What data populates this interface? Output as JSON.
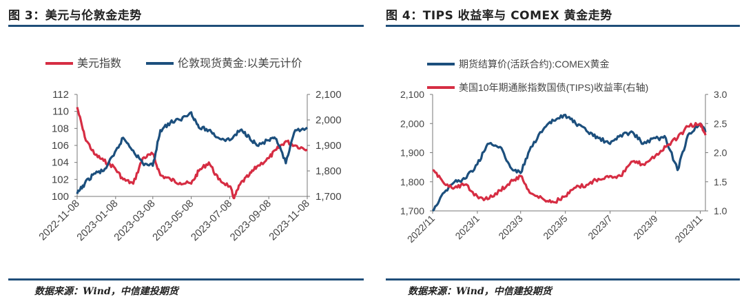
{
  "panels": [
    {
      "title": "图 3：美元与伦敦金走势",
      "source": "数据来源：Wind，中信建投期货"
    },
    {
      "title": "图 4：TIPS 收益率与 COMEX 黄金走势",
      "source": "数据来源：Wind，中信建投期货"
    }
  ],
  "colors": {
    "red": "#d62d43",
    "navy": "#1c4f7d",
    "rule": "#1f4e79"
  },
  "chart_data": [
    {
      "type": "line",
      "legend_placement": "top",
      "grid": false,
      "x_ticks": [
        "2022-11-08",
        "2023-01-08",
        "2023-03-08",
        "2023-05-08",
        "2023-07-08",
        "2023-09-08",
        "2023-11-08"
      ],
      "y_left": {
        "ticks": [
          "100",
          "102",
          "104",
          "106",
          "108",
          "110",
          "112"
        ],
        "lim": [
          100,
          112
        ]
      },
      "y_right": {
        "ticks": [
          "1,700",
          "1,800",
          "1,900",
          "2,000",
          "2,100"
        ],
        "lim": [
          1700,
          2100
        ]
      },
      "series": [
        {
          "name": "美元指数",
          "axis": "left",
          "color": "red",
          "x": [
            "2022-11-08",
            "2022-11-20",
            "2022-12-05",
            "2022-12-20",
            "2023-01-05",
            "2023-01-20",
            "2023-02-05",
            "2023-02-20",
            "2023-03-08",
            "2023-03-20",
            "2023-04-05",
            "2023-04-20",
            "2023-05-08",
            "2023-05-20",
            "2023-06-05",
            "2023-06-20",
            "2023-07-08",
            "2023-07-15",
            "2023-07-25",
            "2023-08-08",
            "2023-08-20",
            "2023-09-08",
            "2023-09-20",
            "2023-10-05",
            "2023-10-20",
            "2023-11-08"
          ],
          "values": [
            110.5,
            107.0,
            105.0,
            104.2,
            103.5,
            102.0,
            101.5,
            104.5,
            105.0,
            102.5,
            102.0,
            101.6,
            101.5,
            103.0,
            104.0,
            102.0,
            101.2,
            99.8,
            101.5,
            102.5,
            103.5,
            104.5,
            105.5,
            106.5,
            106.0,
            105.5
          ]
        },
        {
          "name": "伦敦现货黄金:以美元计价",
          "axis": "right",
          "color": "navy",
          "x": [
            "2022-11-08",
            "2022-11-20",
            "2022-12-05",
            "2022-12-20",
            "2023-01-05",
            "2023-01-20",
            "2023-02-05",
            "2023-02-20",
            "2023-03-08",
            "2023-03-20",
            "2023-04-05",
            "2023-04-20",
            "2023-05-08",
            "2023-05-20",
            "2023-06-05",
            "2023-06-20",
            "2023-07-08",
            "2023-07-25",
            "2023-08-08",
            "2023-08-20",
            "2023-09-08",
            "2023-09-20",
            "2023-10-05",
            "2023-10-20",
            "2023-11-08"
          ],
          "values": [
            1710,
            1750,
            1790,
            1800,
            1860,
            1930,
            1880,
            1830,
            1820,
            1960,
            1990,
            2000,
            2030,
            1970,
            1960,
            1930,
            1920,
            1960,
            1935,
            1900,
            1920,
            1925,
            1830,
            1960,
            1970
          ]
        }
      ]
    },
    {
      "type": "line",
      "legend_placement": "top",
      "grid": false,
      "x_ticks": [
        "2022/11",
        "2023/1",
        "2023/3",
        "2023/5",
        "2023/7",
        "2023/9",
        "2023/11"
      ],
      "y_left": {
        "ticks": [
          "1,700",
          "1,800",
          "1,900",
          "2,000",
          "2,100"
        ],
        "lim": [
          1700,
          2100
        ]
      },
      "y_right": {
        "ticks": [
          "1.0",
          "1.5",
          "2.0",
          "2.5",
          "3.0"
        ],
        "lim": [
          1.0,
          3.0
        ]
      },
      "series": [
        {
          "name": "期货结算价(活跃合约):COMEX黄金",
          "axis": "left",
          "color": "navy",
          "x": [
            "2022-11-01",
            "2022-11-15",
            "2022-12-01",
            "2022-12-15",
            "2023-01-01",
            "2023-01-15",
            "2023-02-01",
            "2023-02-15",
            "2023-03-01",
            "2023-03-15",
            "2023-04-01",
            "2023-04-15",
            "2023-05-01",
            "2023-05-15",
            "2023-06-01",
            "2023-06-15",
            "2023-07-01",
            "2023-07-15",
            "2023-08-01",
            "2023-08-15",
            "2023-09-01",
            "2023-09-15",
            "2023-10-01",
            "2023-10-15",
            "2023-11-01",
            "2023-11-08"
          ],
          "values": [
            1700,
            1760,
            1800,
            1810,
            1860,
            1930,
            1920,
            1850,
            1830,
            1920,
            1980,
            2010,
            2030,
            2000,
            1970,
            1950,
            1930,
            1960,
            1970,
            1930,
            1950,
            1950,
            1840,
            1960,
            2000,
            1970
          ]
        },
        {
          "name": "美国10年期通胀指数国债(TIPS)收益率(右轴)",
          "axis": "right",
          "color": "red",
          "x": [
            "2022-11-01",
            "2022-11-15",
            "2022-12-01",
            "2022-12-15",
            "2023-01-01",
            "2023-01-15",
            "2023-02-01",
            "2023-02-15",
            "2023-03-01",
            "2023-03-15",
            "2023-04-01",
            "2023-04-15",
            "2023-05-01",
            "2023-05-15",
            "2023-06-01",
            "2023-06-15",
            "2023-07-01",
            "2023-07-15",
            "2023-08-01",
            "2023-08-15",
            "2023-09-01",
            "2023-09-15",
            "2023-10-01",
            "2023-10-15",
            "2023-11-01",
            "2023-11-08"
          ],
          "values": [
            1.7,
            1.5,
            1.4,
            1.45,
            1.25,
            1.2,
            1.35,
            1.5,
            1.6,
            1.3,
            1.2,
            1.15,
            1.25,
            1.4,
            1.45,
            1.55,
            1.6,
            1.6,
            1.85,
            1.8,
            1.95,
            2.1,
            2.25,
            2.45,
            2.5,
            2.3
          ]
        }
      ]
    }
  ]
}
